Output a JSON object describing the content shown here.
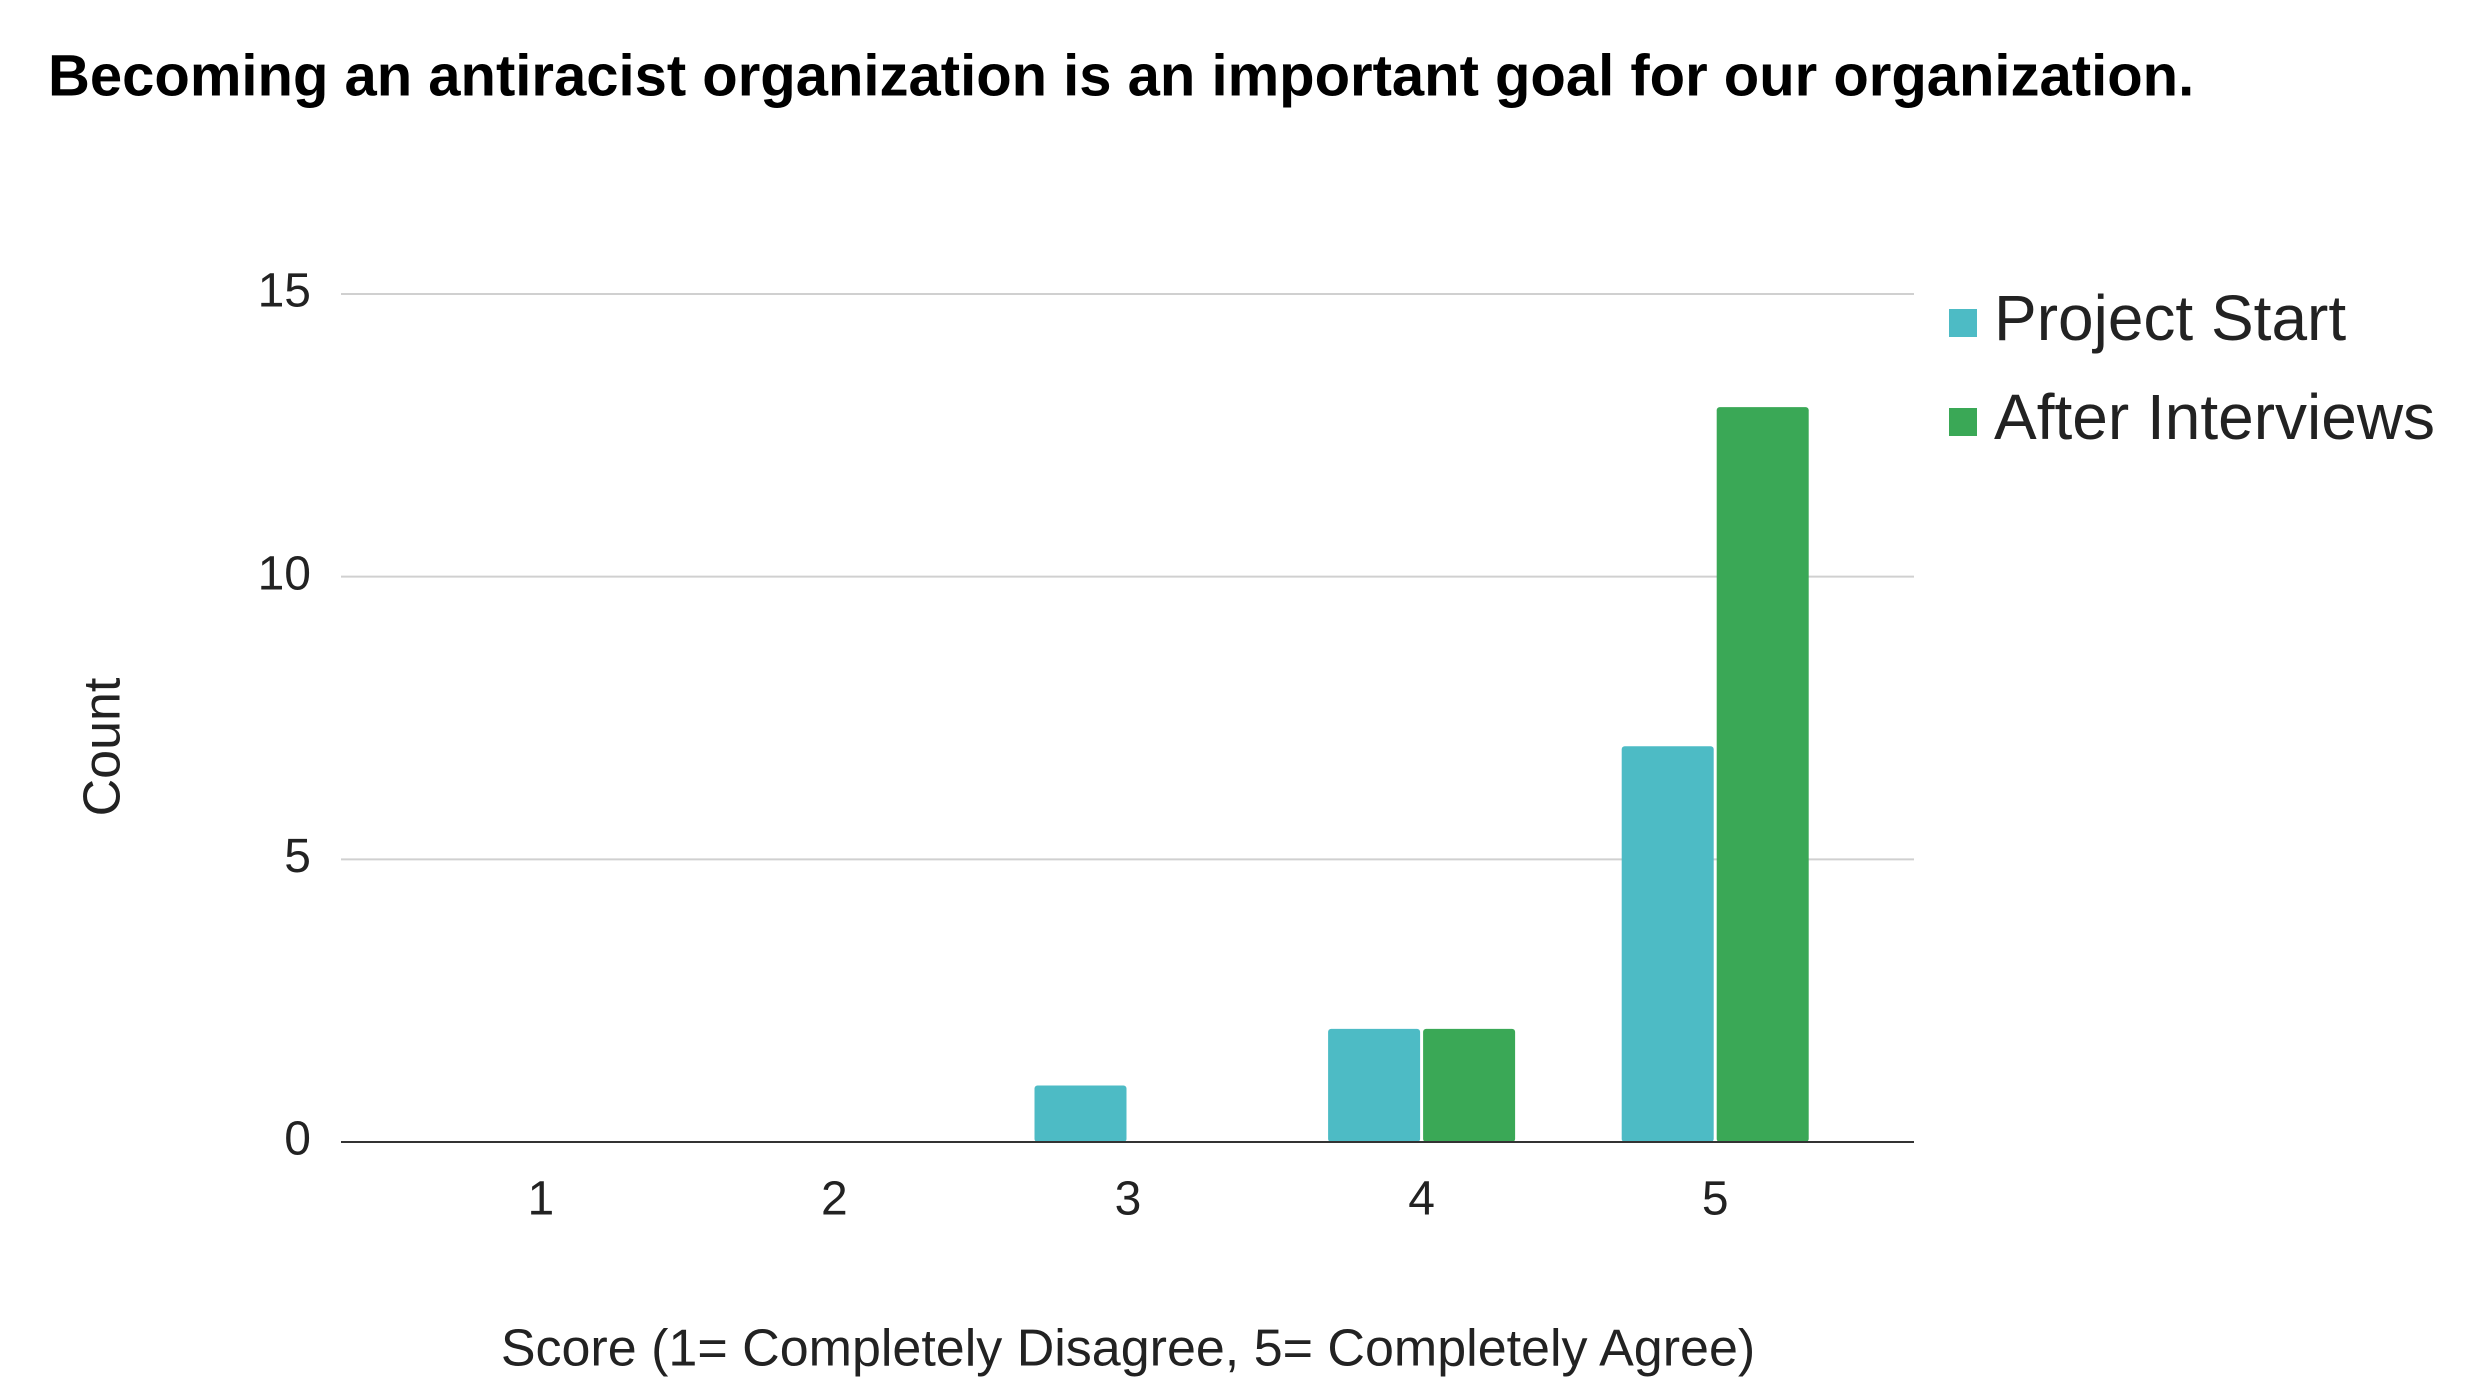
{
  "chart_data": {
    "type": "bar",
    "title": "Becoming an antiracist organization is an important goal for our organization.",
    "x_label": "Score (1= Completely Disagree, 5= Completely Agree)",
    "y_label": "Count",
    "categories": [
      "1",
      "2",
      "3",
      "4",
      "5"
    ],
    "series": [
      {
        "name": "Project Start",
        "color": "#4dbbc5",
        "values": [
          0,
          0,
          1,
          2,
          7
        ]
      },
      {
        "name": "After Interviews",
        "color": "#3aa856",
        "values": [
          0,
          0,
          0,
          2,
          13
        ]
      }
    ],
    "ylim": [
      0,
      15
    ],
    "yticks": [
      0,
      5,
      10,
      15
    ],
    "grid": true,
    "legend": "right"
  }
}
